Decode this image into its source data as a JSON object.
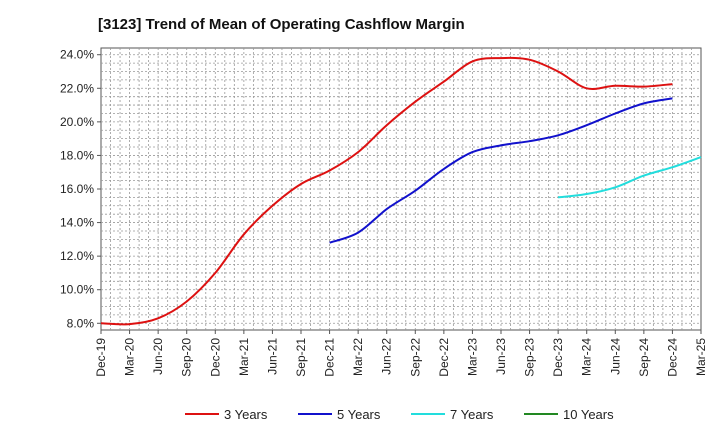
{
  "chart_data": {
    "type": "line",
    "title": "[3123]  Trend of Mean of Operating Cashflow Margin",
    "xlabel": "",
    "ylabel": "",
    "x_ticks": [
      "Dec-19",
      "Mar-20",
      "Jun-20",
      "Sep-20",
      "Dec-20",
      "Mar-21",
      "Jun-21",
      "Sep-21",
      "Dec-21",
      "Mar-22",
      "Jun-22",
      "Sep-22",
      "Dec-22",
      "Mar-23",
      "Jun-23",
      "Sep-23",
      "Dec-23",
      "Mar-24",
      "Jun-24",
      "Sep-24",
      "Dec-24",
      "Mar-25"
    ],
    "y_ticks": [
      "8.0%",
      "10.0%",
      "12.0%",
      "14.0%",
      "16.0%",
      "18.0%",
      "20.0%",
      "22.0%",
      "24.0%"
    ],
    "ylim": [
      7.6,
      24.4
    ],
    "grid": true,
    "legend_position": "bottom",
    "series": [
      {
        "name": "3 Years",
        "color": "#dd1111",
        "start_index": 0,
        "values": [
          8.0,
          7.95,
          8.3,
          9.3,
          11.0,
          13.3,
          15.0,
          16.3,
          17.1,
          18.2,
          19.8,
          21.2,
          22.4,
          23.6,
          23.8,
          23.7,
          23.0,
          22.0,
          22.15,
          22.1,
          22.25
        ]
      },
      {
        "name": "5 Years",
        "color": "#1111cc",
        "start_index": 8,
        "values": [
          12.8,
          13.4,
          14.8,
          15.9,
          17.2,
          18.2,
          18.6,
          18.85,
          19.2,
          19.8,
          20.5,
          21.1,
          21.4
        ]
      },
      {
        "name": "7 Years",
        "color": "#22dddd",
        "start_index": 16,
        "values": [
          15.5,
          15.7,
          16.1,
          16.8,
          17.3,
          17.9
        ]
      },
      {
        "name": "10 Years",
        "color": "#228822",
        "start_index": 0,
        "values": []
      }
    ]
  }
}
